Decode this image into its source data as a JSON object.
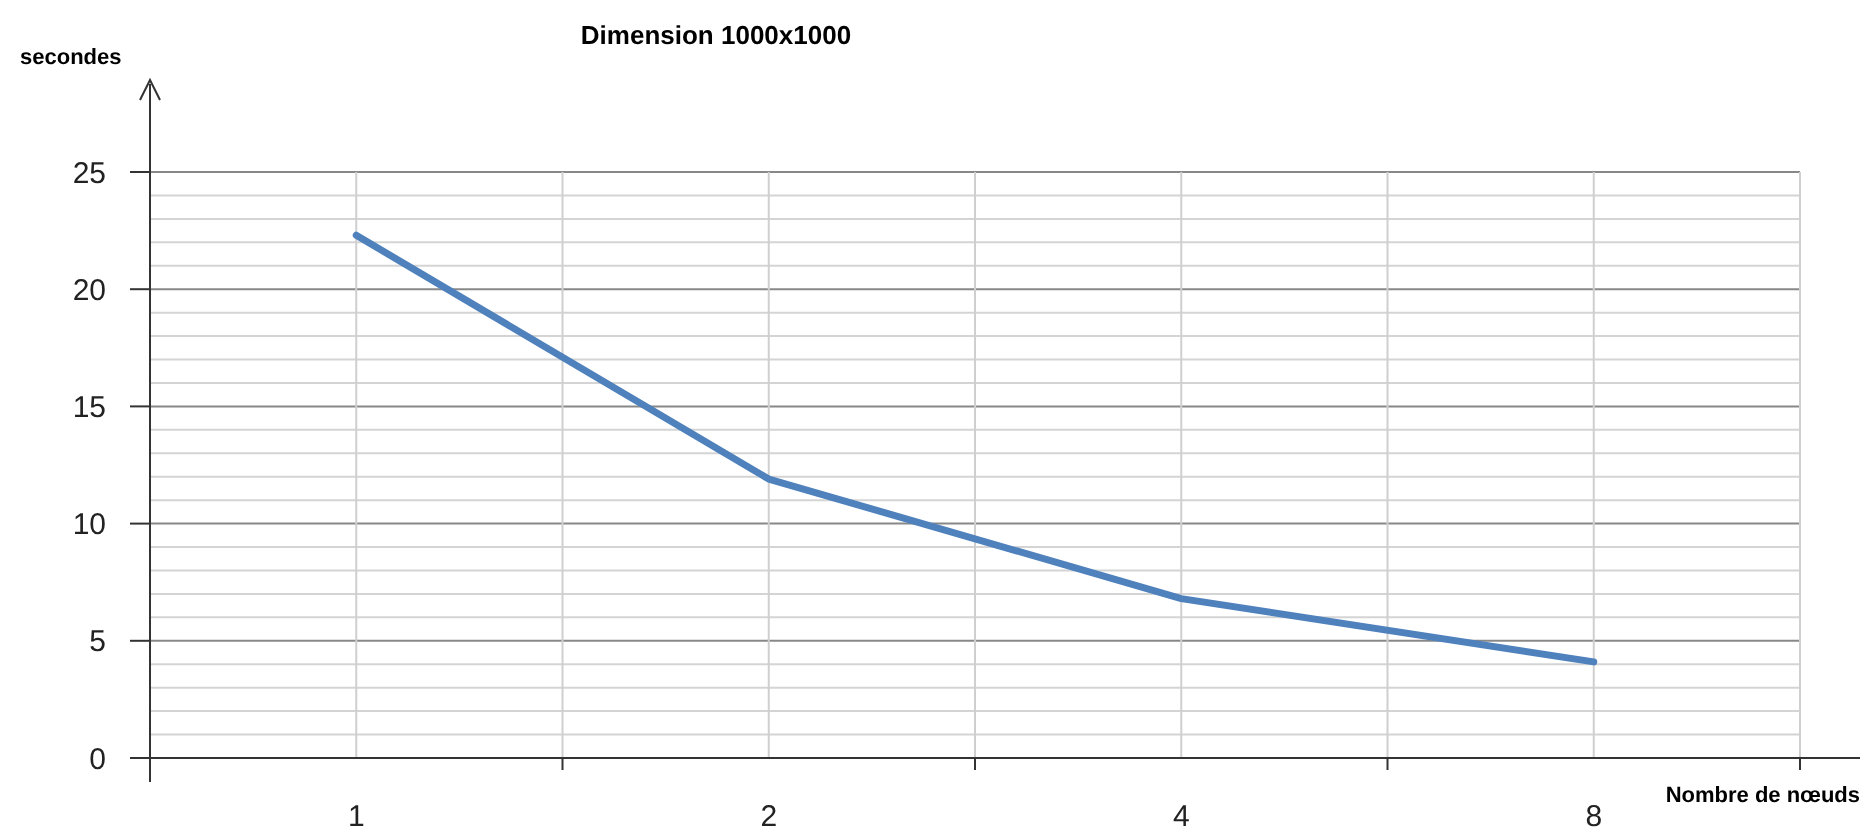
{
  "chart_data": {
    "type": "line",
    "title": "Dimension 1000x1000",
    "xlabel": "Nombre de nœuds",
    "ylabel": "secondes",
    "categories": [
      "1",
      "2",
      "4",
      "8"
    ],
    "series": [
      {
        "color": "#4f81bd",
        "values": [
          22.3,
          11.9,
          6.8,
          4.1
        ]
      }
    ],
    "ylim": [
      0,
      25
    ],
    "yticks": [
      0,
      {
        "value": 1,
        "label": null
      },
      {
        "value": 2,
        "label": null
      },
      {
        "value": 3,
        "label": null
      },
      {
        "value": 4,
        "label": null
      },
      5,
      {
        "value": 6,
        "label": null
      },
      {
        "value": 7,
        "label": null
      },
      {
        "value": 8,
        "label": null
      },
      {
        "value": 9,
        "label": null
      },
      10,
      {
        "value": 11,
        "label": null
      },
      {
        "value": 12,
        "label": null
      },
      {
        "value": 13,
        "label": null
      },
      {
        "value": 14,
        "label": null
      },
      15,
      {
        "value": 16,
        "label": null
      },
      {
        "value": 17,
        "label": null
      },
      {
        "value": 18,
        "label": null
      },
      {
        "value": 19,
        "label": null
      },
      20,
      {
        "value": 21,
        "label": null
      },
      {
        "value": 22,
        "label": null
      },
      {
        "value": 23,
        "label": null
      },
      {
        "value": 24,
        "label": null
      },
      25
    ],
    "grid": true,
    "marker": "none",
    "line_style": "solid"
  }
}
